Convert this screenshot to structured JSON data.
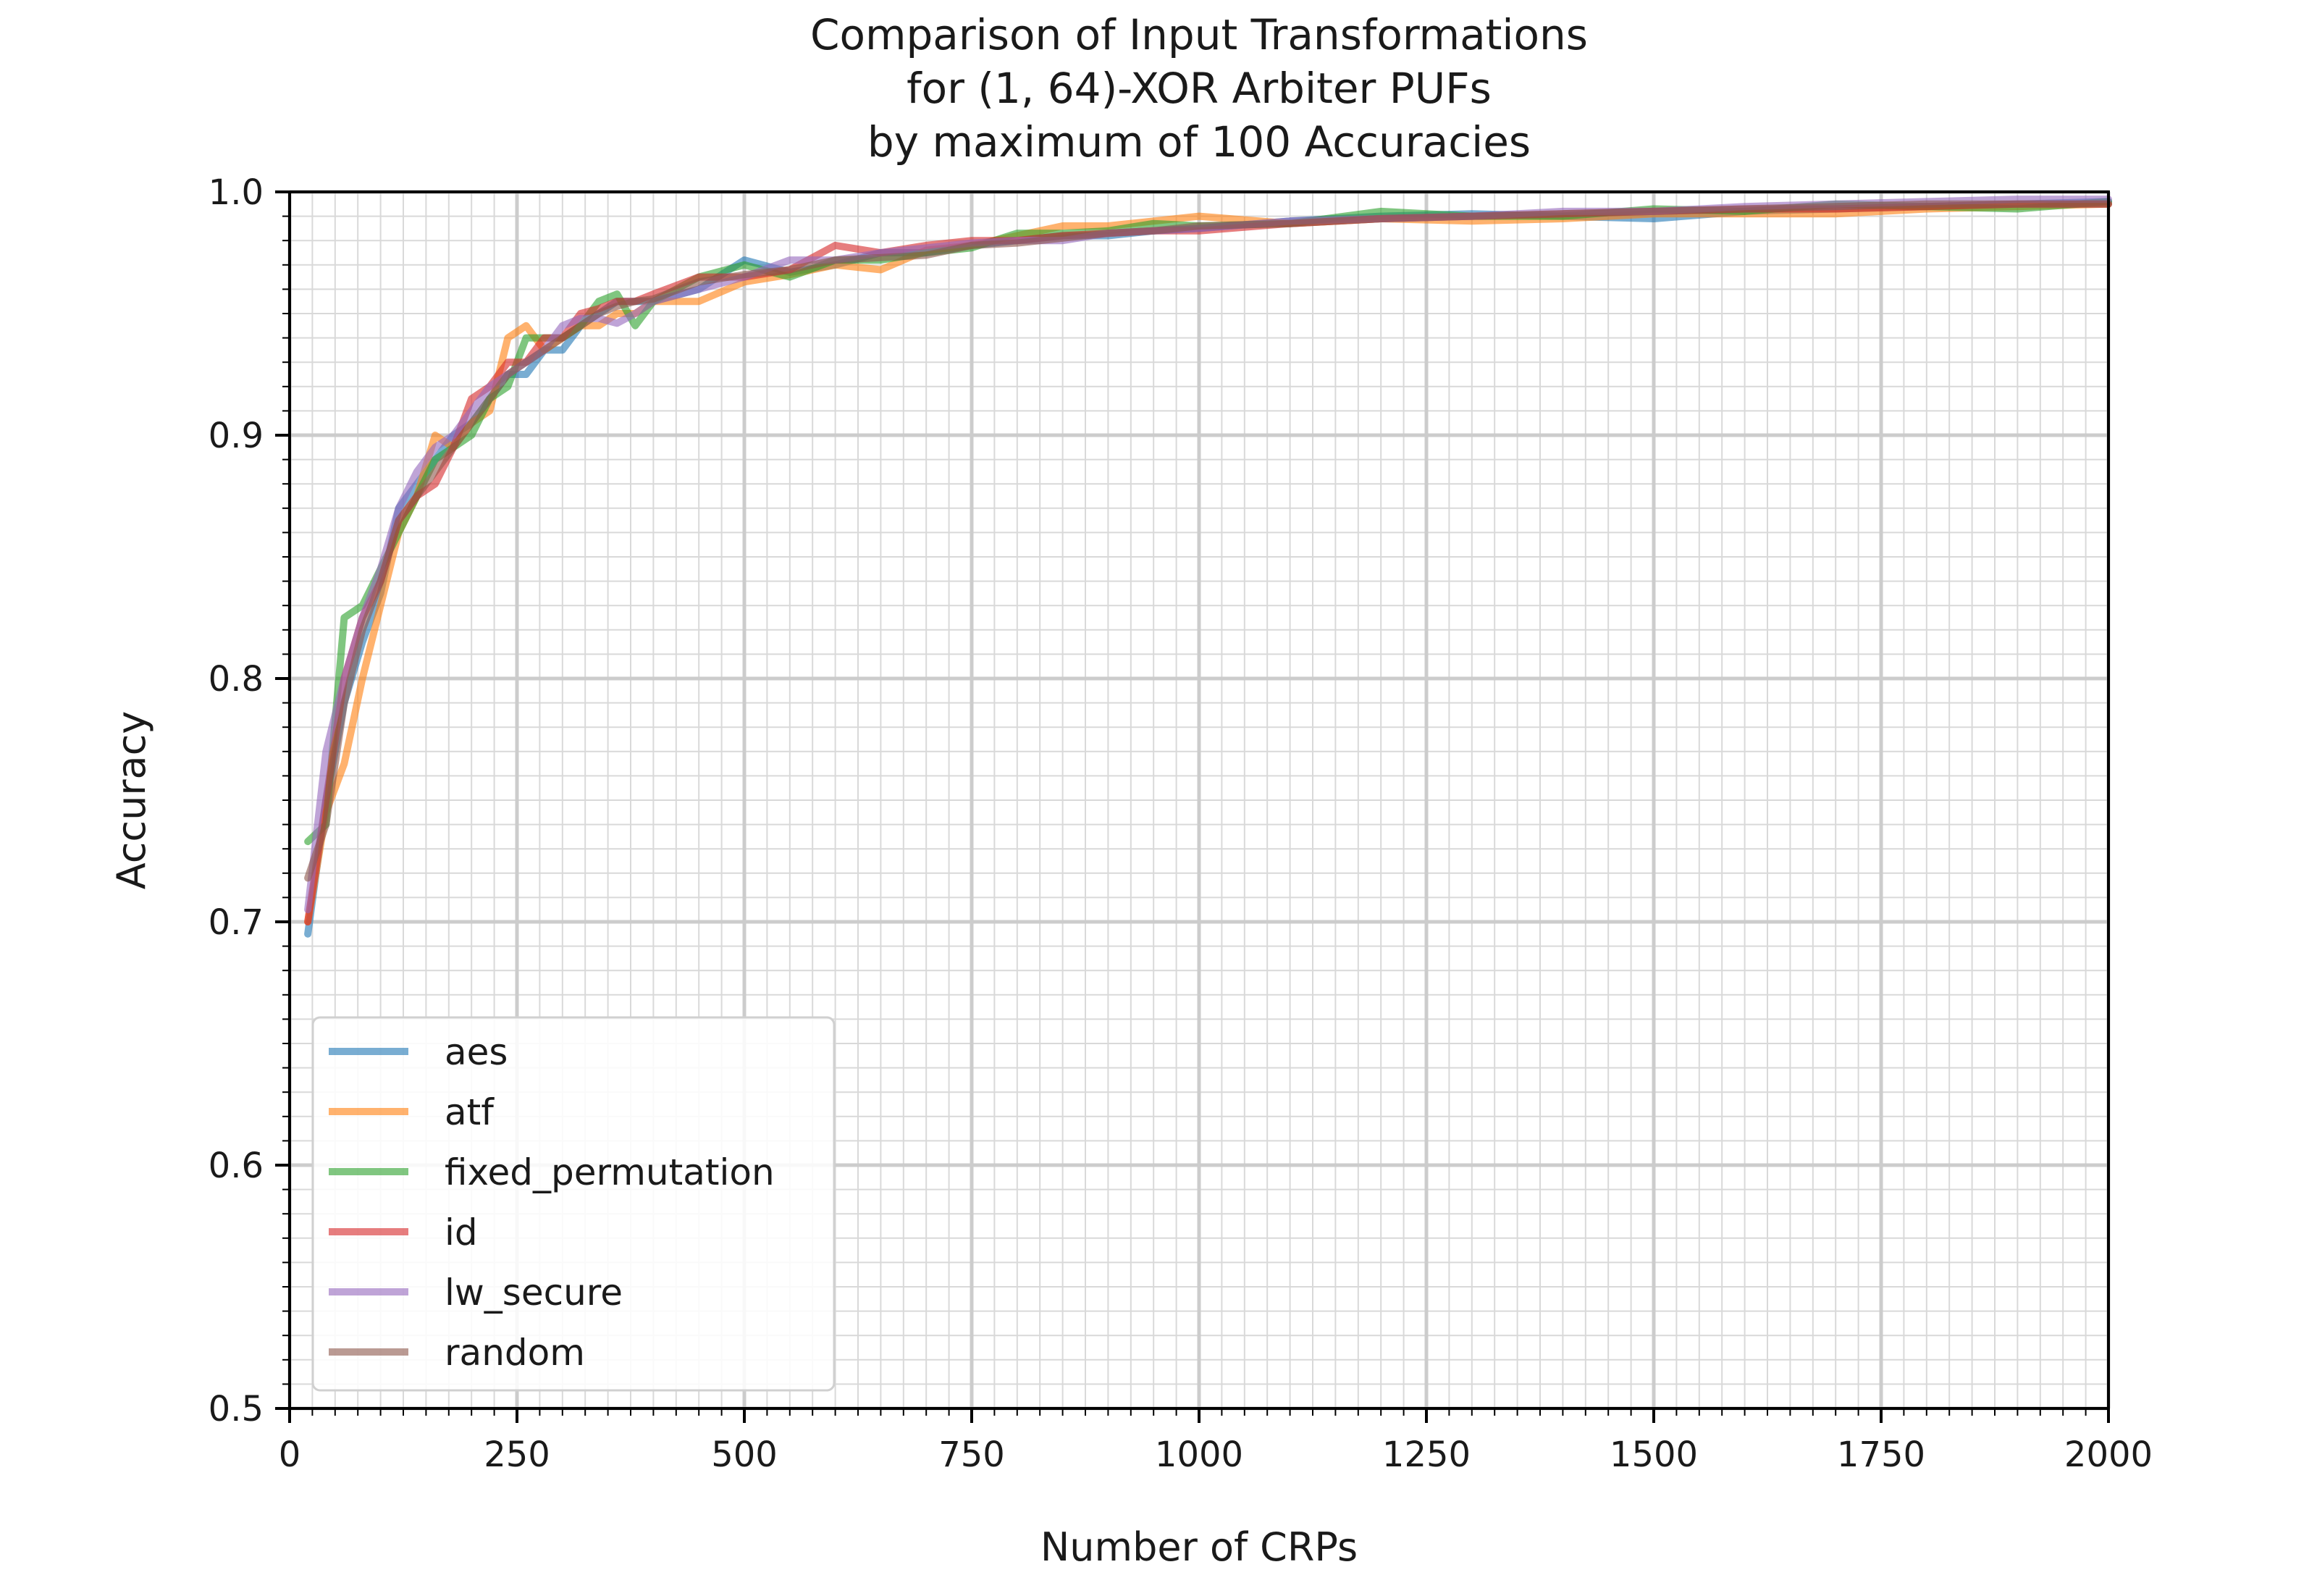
{
  "chart_data": {
    "type": "line",
    "title": [
      "Comparison of Input Transformations",
      "for (1, 64)-XOR Arbiter PUFs",
      "by maximum of 100 Accuracies"
    ],
    "xlabel": "Number of CRPs",
    "ylabel": "Accuracy",
    "xlim": [
      0,
      2000
    ],
    "ylim": [
      0.5,
      1.0
    ],
    "x_major_ticks": [
      0,
      250,
      500,
      750,
      1000,
      1250,
      1500,
      1750,
      2000
    ],
    "x_tick_labels": [
      "0",
      "250",
      "500",
      "750",
      "1000",
      "1250",
      "1500",
      "1750",
      "2000"
    ],
    "y_major_ticks": [
      0.5,
      0.6,
      0.7,
      0.8,
      0.9,
      1.0
    ],
    "y_tick_labels": [
      "0.5",
      "0.6",
      "0.7",
      "0.8",
      "0.9",
      "1.0"
    ],
    "grid": "major and minor",
    "legend_position": "lower-left",
    "x": [
      20,
      40,
      60,
      80,
      100,
      120,
      140,
      160,
      180,
      200,
      220,
      240,
      260,
      280,
      300,
      320,
      340,
      360,
      380,
      400,
      450,
      500,
      550,
      600,
      650,
      700,
      750,
      800,
      850,
      900,
      950,
      1000,
      1100,
      1200,
      1300,
      1400,
      1500,
      1600,
      1700,
      1800,
      1900,
      2000
    ],
    "series": [
      {
        "name": "aes",
        "color": "#1f77b4",
        "values": [
          0.695,
          0.75,
          0.79,
          0.815,
          0.835,
          0.87,
          0.88,
          0.89,
          0.9,
          0.905,
          0.915,
          0.925,
          0.925,
          0.935,
          0.935,
          0.945,
          0.95,
          0.955,
          0.955,
          0.955,
          0.96,
          0.972,
          0.967,
          0.97,
          0.975,
          0.975,
          0.978,
          0.98,
          0.982,
          0.982,
          0.984,
          0.985,
          0.988,
          0.99,
          0.991,
          0.99,
          0.989,
          0.992,
          0.993,
          0.994,
          0.995,
          0.996
        ]
      },
      {
        "name": "atf",
        "color": "#ff7f0e",
        "values": [
          0.7,
          0.745,
          0.765,
          0.8,
          0.83,
          0.86,
          0.875,
          0.9,
          0.895,
          0.905,
          0.91,
          0.94,
          0.945,
          0.935,
          0.94,
          0.945,
          0.945,
          0.95,
          0.95,
          0.955,
          0.955,
          0.963,
          0.966,
          0.97,
          0.968,
          0.976,
          0.978,
          0.982,
          0.986,
          0.986,
          0.988,
          0.99,
          0.987,
          0.989,
          0.988,
          0.989,
          0.991,
          0.991,
          0.991,
          0.993,
          0.994,
          0.995
        ]
      },
      {
        "name": "fixed_permutation",
        "color": "#2ca02c",
        "values": [
          0.733,
          0.74,
          0.825,
          0.83,
          0.845,
          0.86,
          0.875,
          0.89,
          0.895,
          0.9,
          0.915,
          0.92,
          0.94,
          0.94,
          0.94,
          0.945,
          0.955,
          0.958,
          0.945,
          0.955,
          0.965,
          0.97,
          0.965,
          0.972,
          0.972,
          0.975,
          0.977,
          0.983,
          0.983,
          0.984,
          0.987,
          0.986,
          0.987,
          0.992,
          0.99,
          0.99,
          0.993,
          0.992,
          0.995,
          0.994,
          0.993,
          0.996
        ]
      },
      {
        "name": "id",
        "color": "#d62728",
        "values": [
          0.7,
          0.75,
          0.8,
          0.825,
          0.84,
          0.865,
          0.875,
          0.88,
          0.895,
          0.915,
          0.92,
          0.93,
          0.93,
          0.94,
          0.94,
          0.95,
          0.952,
          0.955,
          0.955,
          0.958,
          0.965,
          0.965,
          0.968,
          0.978,
          0.975,
          0.978,
          0.98,
          0.98,
          0.982,
          0.983,
          0.984,
          0.984,
          0.987,
          0.989,
          0.99,
          0.991,
          0.992,
          0.993,
          0.993,
          0.994,
          0.995,
          0.995
        ]
      },
      {
        "name": "lw_secure",
        "color": "#9467bd",
        "values": [
          0.705,
          0.77,
          0.8,
          0.825,
          0.845,
          0.87,
          0.885,
          0.895,
          0.9,
          0.91,
          0.92,
          0.925,
          0.93,
          0.935,
          0.945,
          0.948,
          0.948,
          0.946,
          0.95,
          0.955,
          0.96,
          0.965,
          0.972,
          0.972,
          0.975,
          0.977,
          0.979,
          0.98,
          0.98,
          0.983,
          0.984,
          0.985,
          0.988,
          0.989,
          0.99,
          0.992,
          0.992,
          0.994,
          0.995,
          0.996,
          0.997,
          0.997
        ]
      },
      {
        "name": "random",
        "color": "#8c564b",
        "values": [
          0.718,
          0.74,
          0.79,
          0.82,
          0.84,
          0.865,
          0.875,
          0.885,
          0.895,
          0.905,
          0.915,
          0.925,
          0.93,
          0.935,
          0.94,
          0.945,
          0.95,
          0.953,
          0.955,
          0.956,
          0.963,
          0.966,
          0.968,
          0.972,
          0.973,
          0.974,
          0.978,
          0.979,
          0.981,
          0.983,
          0.984,
          0.986,
          0.987,
          0.989,
          0.99,
          0.991,
          0.992,
          0.993,
          0.994,
          0.995,
          0.995,
          0.995
        ]
      }
    ]
  }
}
